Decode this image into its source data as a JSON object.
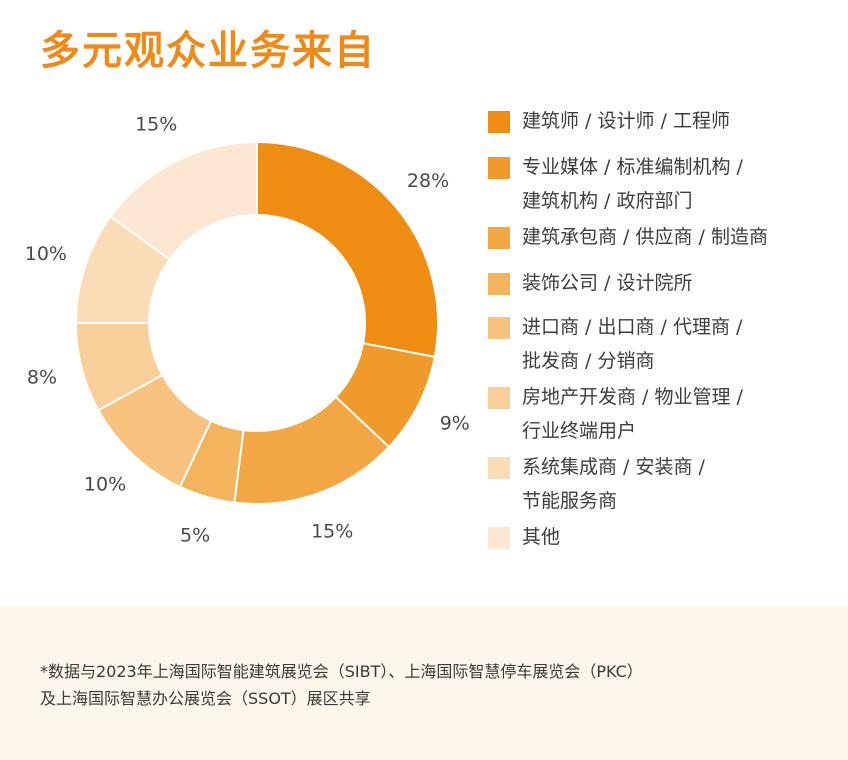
{
  "title": "多元观众业务来自",
  "chart_data": {
    "type": "pie",
    "values": [
      28,
      9,
      15,
      5,
      10,
      8,
      10,
      15
    ],
    "value_labels": [
      "28%",
      "9%",
      "15%",
      "5%",
      "10%",
      "8%",
      "10%",
      "15%"
    ],
    "colors": [
      "#ef8c12",
      "#f19a2c",
      "#f2a744",
      "#f4b45e",
      "#f6c27d",
      "#f8cf99",
      "#fadcb6",
      "#fce8d2"
    ],
    "legend_lines": [
      [
        "建筑师 / 设计师 / 工程师"
      ],
      [
        "专业媒体 / 标准编制机构 /",
        "建筑机构 / 政府部门"
      ],
      [
        "建筑承包商 / 供应商 / 制造商"
      ],
      [
        "装饰公司 / 设计院所"
      ],
      [
        "进口商 / 出口商 / 代理商 /",
        "批发商 / 分销商"
      ],
      [
        "房地产开发商 / 物业管理 /",
        "行业终端用户"
      ],
      [
        "系统集成商 / 安装商 /",
        "节能服务商"
      ],
      [
        "其他"
      ]
    ],
    "legend_placement": "right"
  },
  "footnote": {
    "line1": "*数据与2023年上海国际智能建筑展览会（SIBT）、上海国际智慧停车展览会（PKC）",
    "line2": "及上海国际智慧办公展览会（SSOT）展区共享"
  }
}
